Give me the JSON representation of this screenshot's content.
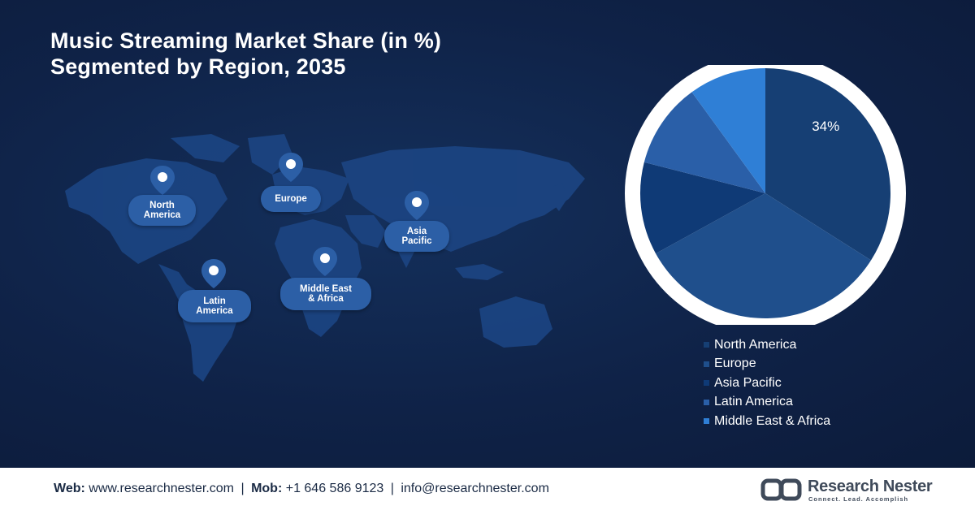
{
  "title": {
    "line1": "Music Streaming Market Share (in %)",
    "line2": "Segmented by Region, 2035"
  },
  "map_labels": {
    "north_america": [
      "North",
      "America"
    ],
    "europe": [
      "Europe"
    ],
    "asia_pacific": [
      "Asia",
      "Pacific"
    ],
    "latin_america": [
      "Latin",
      "America"
    ],
    "middle_east_africa": [
      "Middle East",
      "& Africa"
    ]
  },
  "chart_data": {
    "type": "pie",
    "categories": [
      "North America",
      "Europe",
      "Asia Pacific",
      "Latin America",
      "Middle East & Africa"
    ],
    "values": [
      34,
      33,
      12,
      11,
      10
    ],
    "data_labels": [
      "34%",
      "",
      "",
      "",
      ""
    ],
    "colors": [
      "#163f74",
      "#1f4f8c",
      "#0f3a76",
      "#2a5fa8",
      "#2f7fd6"
    ],
    "legend_position": "bottom-right"
  },
  "footer": {
    "web_label": "Web:",
    "web_value": "www.researchnester.com",
    "mob_label": "Mob:",
    "mob_value": "+1 646 586 9123",
    "email_value": "info@researchnester.com",
    "separator": "|",
    "logo_name": "Research Nester",
    "logo_tagline": "Connect. Lead. Accomplish"
  }
}
